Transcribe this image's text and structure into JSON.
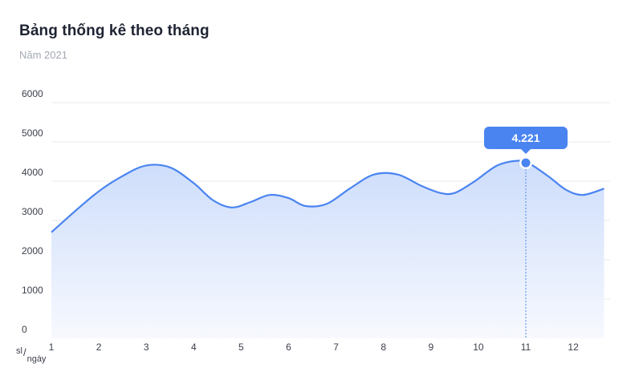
{
  "header": {
    "title": "Bảng thống kê theo tháng",
    "subtitle": "Năm 2021"
  },
  "axis_unit": {
    "numerator": "sl",
    "separator": "/",
    "denominator": "ngày"
  },
  "colors": {
    "line": "#4a84f0",
    "fill_top": "#cdddfb",
    "fill_bottom": "#f7f9fe",
    "grid": "#e8eaee",
    "tooltip": "#4a84f0"
  },
  "tooltip": {
    "label": "4.221",
    "month": 11
  },
  "chart_data": {
    "type": "area",
    "title": "Bảng thống kê theo tháng",
    "subtitle": "Năm 2021",
    "xlabel": "",
    "ylabel": "",
    "ylim": [
      0,
      6000
    ],
    "yticks": [
      "0",
      "1000",
      "2000",
      "3000",
      "4000",
      "5000",
      "6000"
    ],
    "categories": [
      "1",
      "2",
      "3",
      "4",
      "5",
      "6",
      "7",
      "8",
      "9",
      "10",
      "11",
      "12"
    ],
    "grid": true,
    "x": [
      1,
      1.9,
      2.5,
      3,
      3.5,
      4,
      4.4,
      4.8,
      5.2,
      5.6,
      6,
      6.35,
      6.8,
      7.3,
      7.8,
      8.3,
      8.8,
      9.2,
      9.5,
      9.9,
      10.4,
      10.85,
      11.1,
      11.5,
      11.85,
      12.2,
      12.65
    ],
    "values": [
      2700,
      3650,
      4130,
      4400,
      4350,
      3950,
      3520,
      3330,
      3470,
      3650,
      3570,
      3370,
      3420,
      3820,
      4170,
      4170,
      3880,
      3700,
      3700,
      3980,
      4400,
      4520,
      4430,
      4100,
      3780,
      3650,
      3810
    ],
    "highlight": {
      "x": 11,
      "value": 4221
    }
  }
}
